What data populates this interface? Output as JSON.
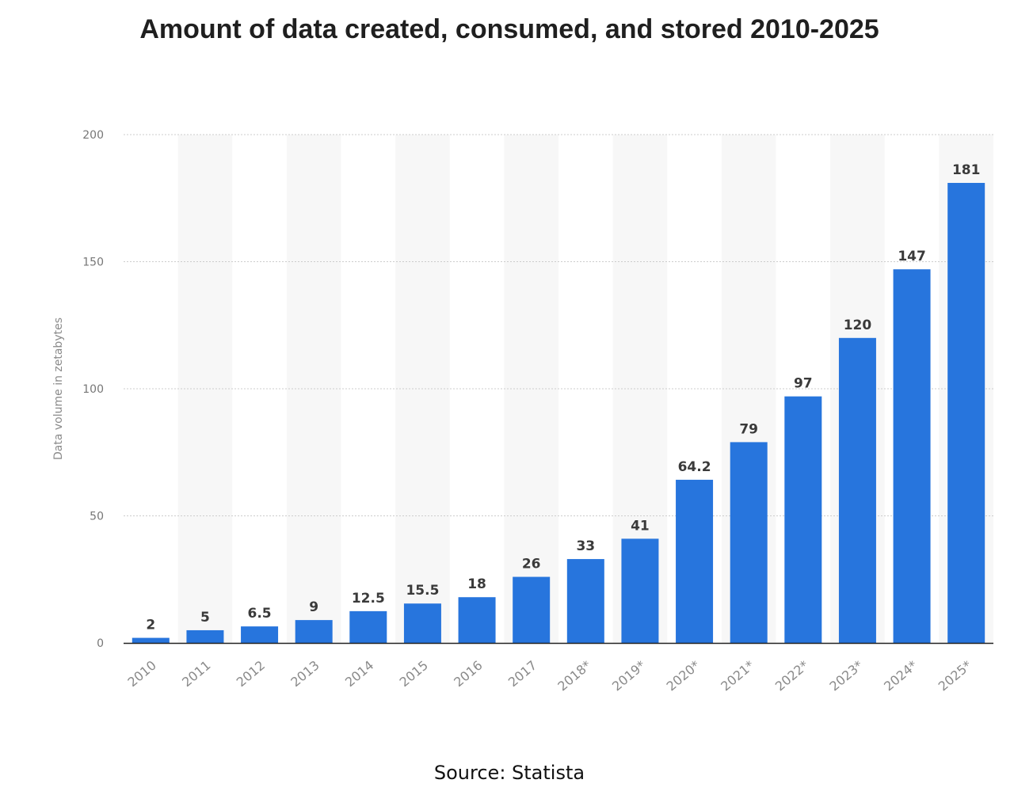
{
  "title": "Amount of data created, consumed, and stored 2010-2025",
  "source": "Source: Statista",
  "colors": {
    "bar": "#2775dd",
    "band": "#f7f7f7",
    "grid": "#cccccc",
    "axis": "#222222"
  },
  "chart_data": {
    "type": "bar",
    "title": "Amount of data created, consumed, and stored 2010-2025",
    "xlabel": "",
    "ylabel": "Data volume in zetabytes",
    "ylim": [
      0,
      200
    ],
    "yticks": [
      0,
      50,
      100,
      150,
      200
    ],
    "grid": "horizontal dotted",
    "legend": "none",
    "categories": [
      "2010",
      "2011",
      "2012",
      "2013",
      "2014",
      "2015",
      "2016",
      "2017",
      "2018*",
      "2019*",
      "2020*",
      "2021*",
      "2022*",
      "2023*",
      "2024*",
      "2025*"
    ],
    "values": [
      2,
      5,
      6.5,
      9,
      12.5,
      15.5,
      18,
      26,
      33,
      41,
      64.2,
      79,
      97,
      120,
      147,
      181
    ],
    "value_labels": [
      "2",
      "5",
      "6.5",
      "9",
      "12.5",
      "15.5",
      "18",
      "26",
      "33",
      "41",
      "64.2",
      "79",
      "97",
      "120",
      "147",
      "181"
    ]
  }
}
